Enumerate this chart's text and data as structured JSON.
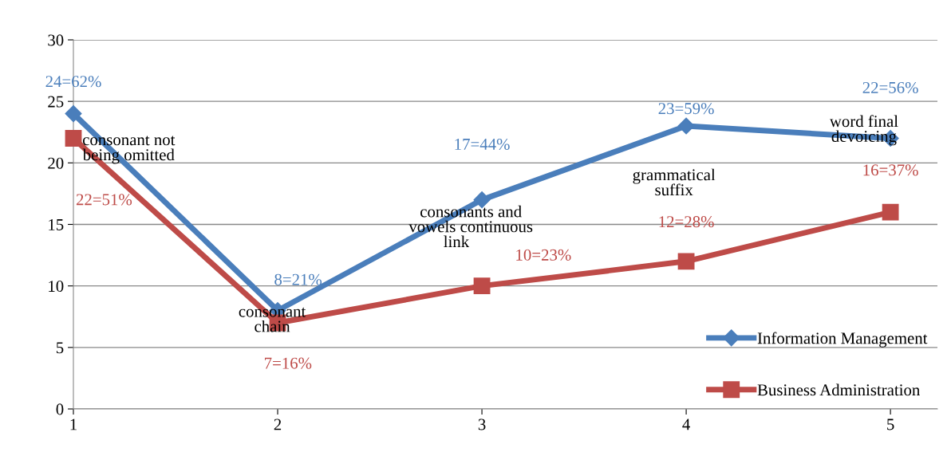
{
  "chart_data": {
    "type": "line",
    "x": [
      1,
      2,
      3,
      4,
      5
    ],
    "xlim": [
      1,
      5.23
    ],
    "xticks": [
      1,
      2,
      3,
      4,
      5
    ],
    "ylim": [
      0,
      30
    ],
    "yticks": [
      0,
      5,
      10,
      15,
      20,
      25,
      30
    ],
    "grid": "y",
    "legend": "bottom right",
    "series": [
      {
        "name": "Information Management",
        "color": "#4a7ebb",
        "marker": "diamond",
        "values": [
          24,
          8,
          17,
          23,
          22
        ],
        "value_labels": [
          "24=62%",
          "8=21%",
          "17=44%",
          "23=59%",
          "22=56%"
        ]
      },
      {
        "name": "Business Administration",
        "color": "#be4b48",
        "marker": "square",
        "values": [
          22,
          7,
          10,
          12,
          16
        ],
        "value_labels": [
          "22=51%",
          "7=16%",
          "10=23%",
          "12=28%",
          "16=37%"
        ]
      }
    ],
    "annotations": [
      "consonant not\nbeing omitted",
      "consonant\nchain",
      "consonants and\nvowels continuous\nlink       ",
      "grammatical\nsuffix",
      "word final\ndevoicing"
    ]
  }
}
